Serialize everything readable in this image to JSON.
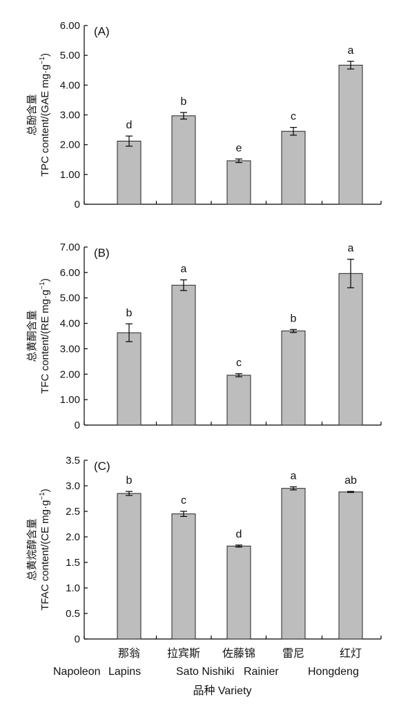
{
  "chart_data": [
    {
      "type": "bar",
      "panel_label": "(A)",
      "ylabel_cn": "总酚含量",
      "ylabel_en": "TPC content/(GAE mg·g",
      "ylabel_sup": "−1",
      "ylabel_close": ")",
      "ylim": [
        0,
        6.0
      ],
      "yticks": [
        0,
        1.0,
        2.0,
        3.0,
        4.0,
        5.0,
        6.0
      ],
      "ytick_labels": [
        "0",
        "1.00",
        "2.00",
        "3.00",
        "4.00",
        "5.00",
        "6.00"
      ],
      "values": [
        2.12,
        2.97,
        1.46,
        2.45,
        4.67
      ],
      "errors": [
        0.17,
        0.11,
        0.06,
        0.13,
        0.13
      ],
      "letters": [
        "d",
        "b",
        "e",
        "c",
        "a"
      ]
    },
    {
      "type": "bar",
      "panel_label": "(B)",
      "ylabel_cn": "总黄酮含量",
      "ylabel_en": "TFC content/(RE mg·g",
      "ylabel_sup": "−1",
      "ylabel_close": ")",
      "ylim": [
        0,
        7.0
      ],
      "yticks": [
        0,
        1.0,
        2.0,
        3.0,
        4.0,
        5.0,
        6.0,
        7.0
      ],
      "ytick_labels": [
        "0",
        "1.00",
        "2.00",
        "3.00",
        "4.00",
        "5.00",
        "6.00",
        "7.00"
      ],
      "values": [
        3.63,
        5.5,
        1.96,
        3.7,
        5.96
      ],
      "errors": [
        0.35,
        0.21,
        0.06,
        0.06,
        0.56
      ],
      "letters": [
        "b",
        "a",
        "c",
        "b",
        "a"
      ]
    },
    {
      "type": "bar",
      "panel_label": "(C)",
      "ylabel_cn": "总黄烷醇含量",
      "ylabel_en": "TFAC content/(CE mg·g",
      "ylabel_sup": "−1",
      "ylabel_close": ")",
      "ylim": [
        0,
        3.5
      ],
      "yticks": [
        0,
        0.5,
        1.0,
        1.5,
        2.0,
        2.5,
        3.0,
        3.5
      ],
      "ytick_labels": [
        "0",
        "0.5",
        "1.0",
        "1.5",
        "2.0",
        "2.5",
        "3.0",
        "3.5"
      ],
      "values": [
        2.85,
        2.45,
        1.82,
        2.95,
        2.88
      ],
      "errors": [
        0.04,
        0.05,
        0.02,
        0.03,
        0.01
      ],
      "letters": [
        "b",
        "c",
        "d",
        "a",
        "ab"
      ]
    }
  ],
  "categories_cn": [
    "那翁",
    "拉宾斯",
    "佐藤锦",
    "雷尼",
    "红灯"
  ],
  "categories_en": [
    "Napoleon",
    "Lapins",
    "Sato Nishiki",
    "Rainier",
    "Hongdeng"
  ],
  "xlabel": "品种 Variety",
  "colors": {
    "bar_fill": "#bdbdbd",
    "bar_stroke": "#222222",
    "axis": "#000000"
  }
}
